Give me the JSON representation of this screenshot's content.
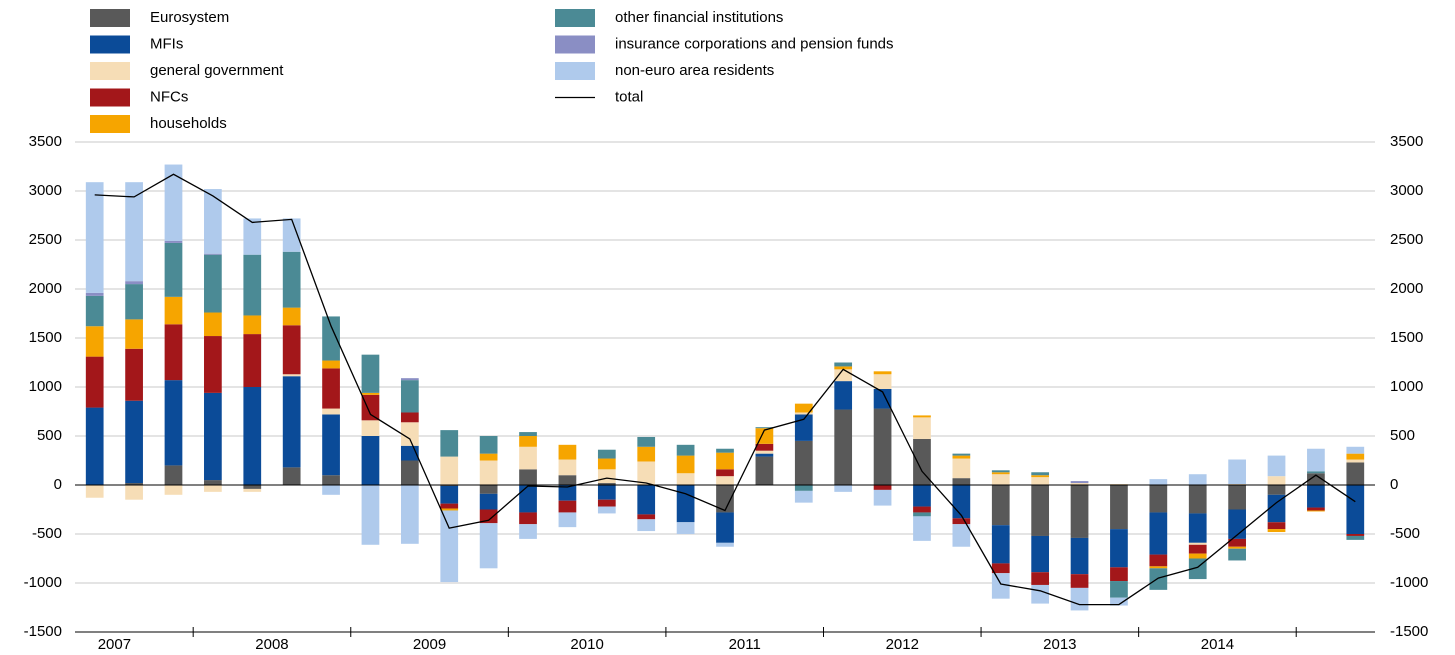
{
  "chart_data": {
    "type": "bar",
    "stacked": true,
    "categories": [
      "2007",
      null,
      null,
      "2008",
      null,
      null,
      null,
      "2009",
      null,
      null,
      null,
      "2010",
      null,
      null,
      null,
      "2011",
      null,
      null,
      null,
      "2012",
      null,
      null,
      null,
      "2013",
      null,
      null,
      null,
      "2014",
      null,
      null,
      null,
      null,
      null
    ],
    "series": [
      {
        "name": "Eurosystem",
        "color": "#595959",
        "values": [
          0,
          20,
          200,
          50,
          -40,
          180,
          100,
          0,
          250,
          -10,
          -90,
          160,
          100,
          20,
          0,
          0,
          -280,
          290,
          450,
          770,
          780,
          470,
          70,
          -410,
          -520,
          -540,
          -450,
          -280,
          -290,
          -250,
          -100,
          120,
          230
        ]
      },
      {
        "name": "MFIs",
        "color": "#0b4b98",
        "values": [
          790,
          840,
          870,
          890,
          1000,
          930,
          620,
          500,
          150,
          -180,
          -160,
          -280,
          -160,
          -150,
          -300,
          -380,
          -310,
          30,
          270,
          290,
          200,
          -220,
          -340,
          -390,
          -370,
          -370,
          -390,
          -430,
          -300,
          -300,
          -280,
          -230,
          -500
        ]
      },
      {
        "name": "general government",
        "color": "#f6ddb6",
        "values": [
          -130,
          -150,
          -100,
          -70,
          -30,
          20,
          60,
          160,
          240,
          290,
          250,
          230,
          160,
          140,
          240,
          120,
          90,
          30,
          20,
          120,
          150,
          220,
          200,
          110,
          80,
          20,
          10,
          0,
          -20,
          10,
          90,
          0,
          30
        ]
      },
      {
        "name": "NFCs",
        "color": "#a3171a",
        "values": [
          520,
          530,
          570,
          580,
          540,
          500,
          410,
          260,
          100,
          -50,
          -140,
          -120,
          -120,
          -70,
          -50,
          0,
          70,
          70,
          0,
          0,
          -50,
          -60,
          -60,
          -100,
          -130,
          -140,
          -140,
          -120,
          -90,
          -80,
          -70,
          -30,
          -20
        ]
      },
      {
        "name": "households",
        "color": "#f6a500",
        "values": [
          310,
          300,
          280,
          240,
          190,
          180,
          80,
          20,
          0,
          -20,
          70,
          110,
          150,
          110,
          150,
          180,
          170,
          160,
          90,
          30,
          30,
          20,
          30,
          20,
          20,
          0,
          0,
          -20,
          -50,
          -20,
          -30,
          -10,
          60
        ]
      },
      {
        "name": "other financial institutions",
        "color": "#4b8a95",
        "values": [
          310,
          360,
          550,
          590,
          620,
          570,
          450,
          390,
          330,
          270,
          180,
          40,
          0,
          90,
          100,
          110,
          40,
          10,
          -60,
          40,
          0,
          -40,
          20,
          20,
          30,
          0,
          -170,
          -220,
          -210,
          -120,
          0,
          20,
          -40
        ]
      },
      {
        "name": "insurance corporations and pension funds",
        "color": "#8a8ec4",
        "values": [
          30,
          30,
          20,
          10,
          0,
          0,
          0,
          0,
          20,
          0,
          0,
          0,
          0,
          0,
          0,
          0,
          0,
          0,
          0,
          0,
          0,
          0,
          0,
          0,
          0,
          20,
          0,
          0,
          0,
          0,
          0,
          0,
          0
        ]
      },
      {
        "name": "non-euro area residents",
        "color": "#afcaec",
        "values": [
          1130,
          1010,
          780,
          660,
          370,
          340,
          -100,
          -610,
          -600,
          -730,
          -460,
          -150,
          -150,
          -70,
          -120,
          -120,
          -40,
          0,
          -120,
          -70,
          -160,
          -250,
          -230,
          -260,
          -190,
          -230,
          -80,
          60,
          110,
          250,
          210,
          230,
          70
        ]
      }
    ],
    "line": {
      "name": "total",
      "color": "#000000",
      "values": [
        2960,
        2940,
        3170,
        2950,
        2680,
        2710,
        1620,
        720,
        470,
        -440,
        -360,
        -10,
        -20,
        70,
        20,
        -90,
        -260,
        560,
        670,
        1180,
        950,
        140,
        -310,
        -1010,
        -1080,
        -1220,
        -1220,
        -950,
        -840,
        -510,
        -180,
        100,
        -170
      ]
    },
    "ylim": [
      -1500,
      3500
    ],
    "yticks": [
      -1500,
      -1000,
      -500,
      0,
      500,
      1000,
      1500,
      2000,
      2500,
      3000,
      3500
    ],
    "y2lim": [
      -1500,
      3500
    ],
    "y2ticks": [
      -1500,
      -1000,
      -500,
      0,
      500,
      1000,
      1500,
      2000,
      2500,
      3000,
      3500
    ],
    "grid": true
  }
}
